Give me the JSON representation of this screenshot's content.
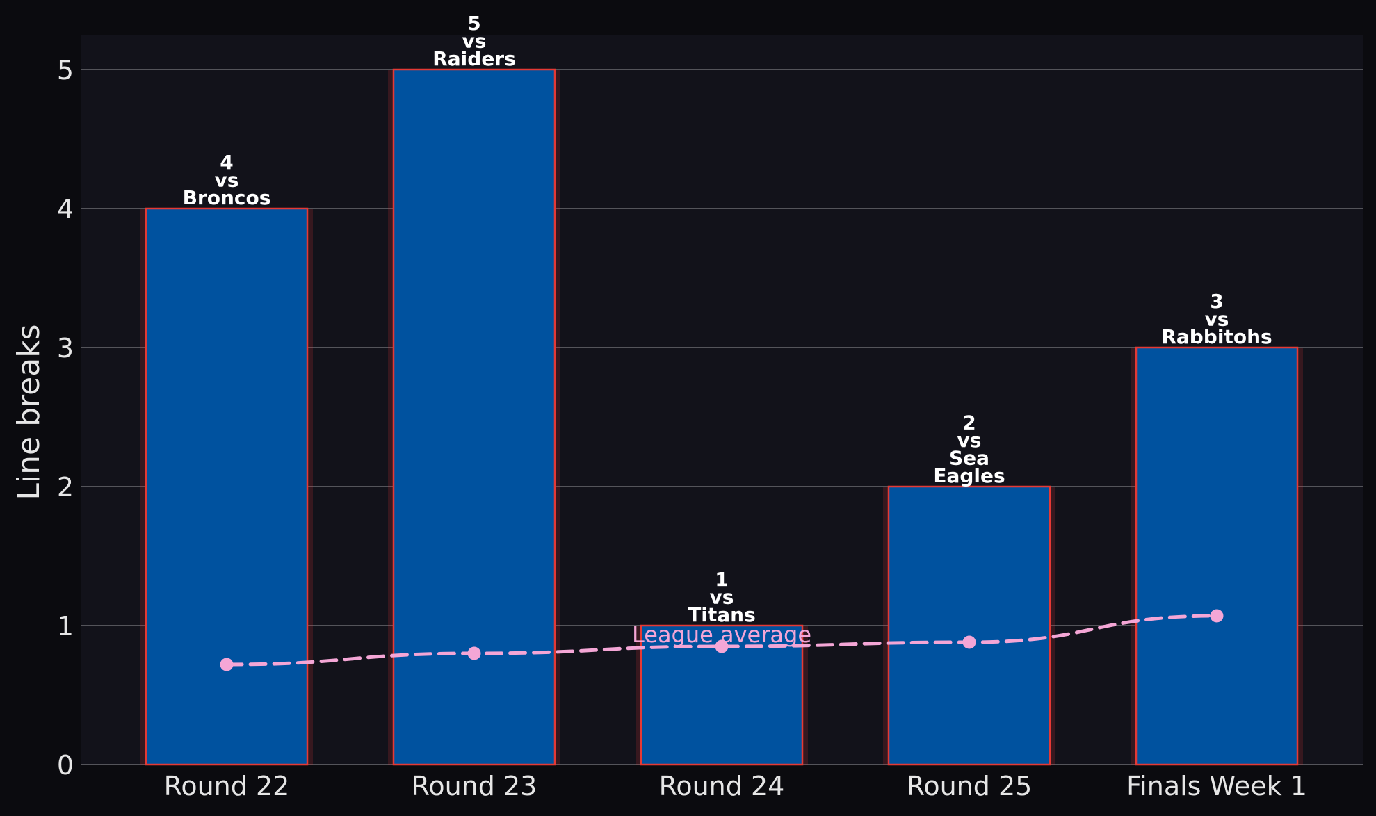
{
  "chart_data": {
    "type": "bar",
    "categories": [
      "Round 22",
      "Round 23",
      "Round 24",
      "Round 25",
      "Finals Week 1"
    ],
    "values": [
      4,
      5,
      1,
      2,
      3
    ],
    "bar_labels": [
      [
        "4",
        "vs",
        "Broncos"
      ],
      [
        "5",
        "vs",
        "Raiders"
      ],
      [
        "1",
        "vs",
        "Titans"
      ],
      [
        "2",
        "vs",
        "Sea",
        "Eagles"
      ],
      [
        "3",
        "vs",
        "Rabbitohs"
      ]
    ],
    "league_average": {
      "label": "League average",
      "values": [
        0.72,
        0.8,
        0.85,
        0.88,
        1.07
      ]
    },
    "ylabel": "Line breaks",
    "xlabel": "",
    "title": "",
    "ylim": [
      0,
      5.25
    ],
    "yticks": [
      0,
      1,
      2,
      3,
      4,
      5
    ],
    "grid": "horizontal",
    "colors": {
      "background": "#0b0b0f",
      "plot_background": "#12121a",
      "bar_fill": "#00529f",
      "bar_edge": "#e53935",
      "grid": "#6b6b70",
      "average_line": "#f4a6d6",
      "text": "#e6e6e6"
    }
  }
}
